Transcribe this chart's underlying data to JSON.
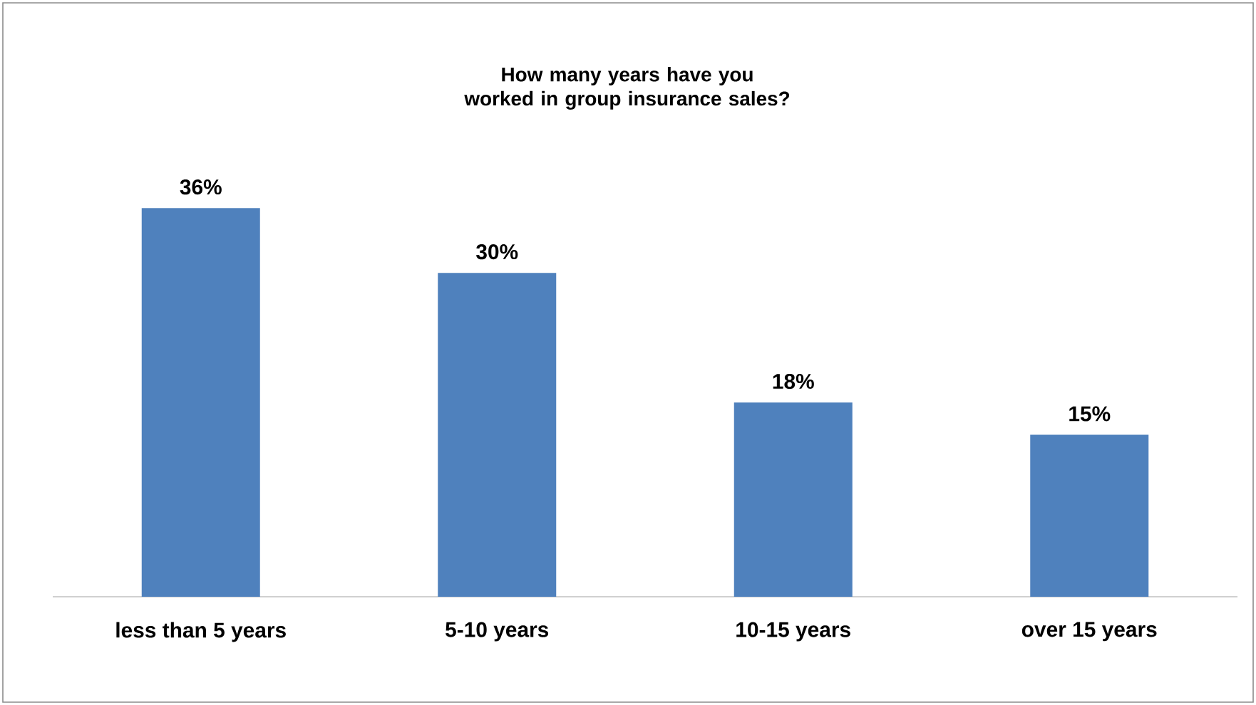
{
  "chart_data": {
    "type": "bar",
    "title": "How many years have you worked in group insurance sales?",
    "categories": [
      "less than 5 years",
      "5-10 years",
      "10-15 years",
      "over 15 years"
    ],
    "values": [
      36,
      30,
      18,
      15
    ],
    "value_labels": [
      "36%",
      "30%",
      "18%",
      "15%"
    ],
    "color": "#4f81bd"
  }
}
